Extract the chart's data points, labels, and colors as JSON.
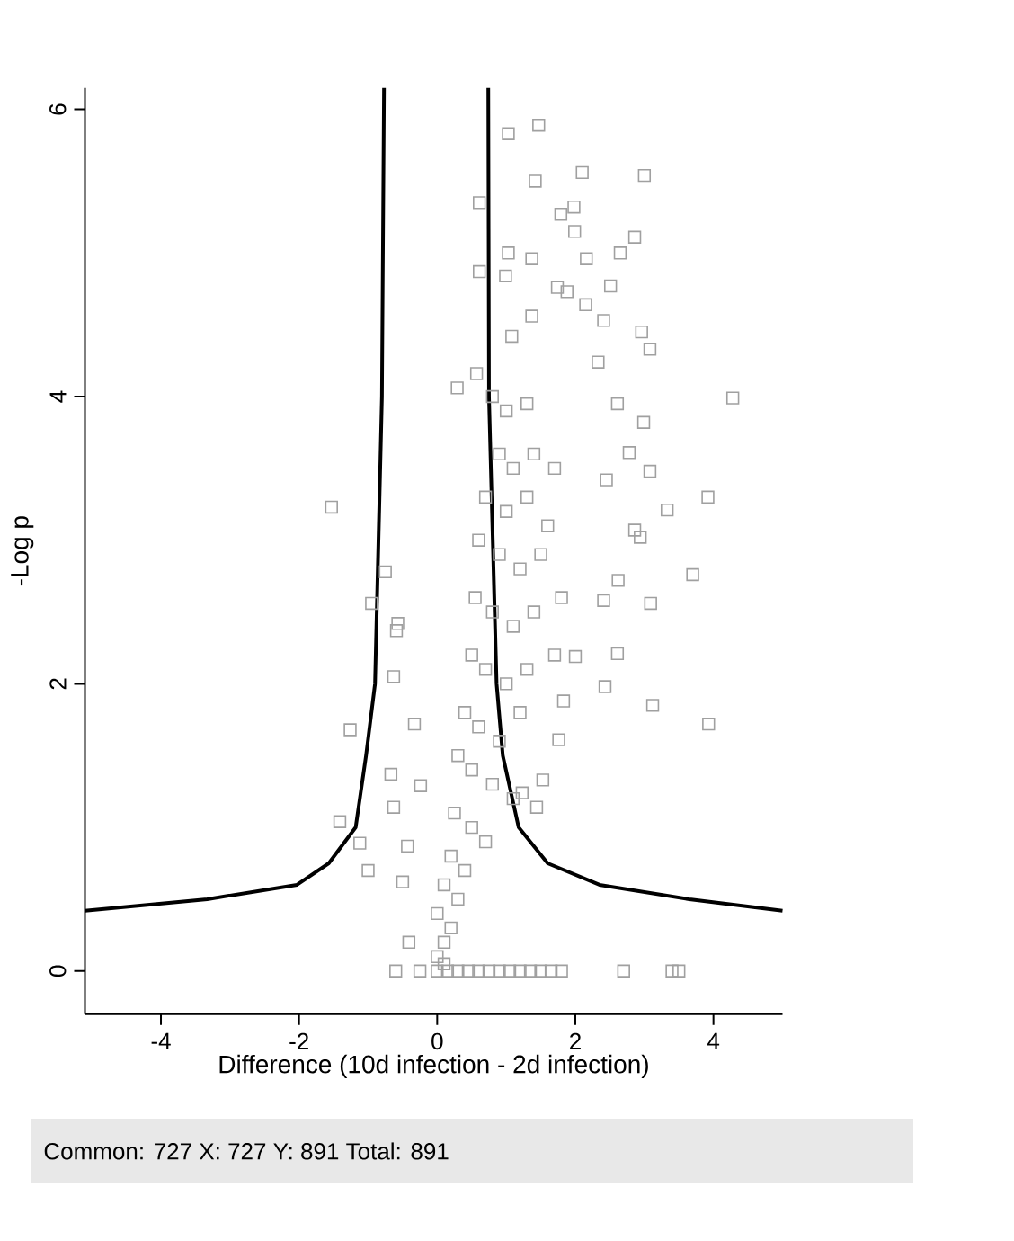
{
  "chart_data": {
    "type": "scatter",
    "xlabel": "Difference (10d infection - 2d infection)",
    "ylabel": "-Log p",
    "xlim": [
      -5.1,
      5
    ],
    "ylim": [
      -0.3,
      6.15
    ],
    "xticks": [
      -4,
      -2,
      0,
      2,
      4
    ],
    "yticks": [
      0,
      2,
      4,
      6
    ],
    "marker": "square",
    "annotations": [
      "Common: 727  X: 727  Y: 891  Total: 891"
    ],
    "series": [
      {
        "type": "scatter",
        "color": "#a0a0a0",
        "x": [
          1.47,
          1.03,
          1.42,
          2.1,
          3.0,
          0.61,
          1.98,
          1.79,
          1.99,
          2.86,
          2.65,
          1.03,
          1.37,
          2.16,
          0.61,
          0.99,
          2.51,
          1.74,
          1.88,
          2.15,
          2.41,
          2.96,
          3.08,
          1.37,
          1.08,
          2.33,
          0.57,
          0.29,
          2.61,
          4.28,
          2.99,
          2.78,
          3.08,
          2.45,
          -1.53,
          3.92,
          3.33,
          2.86,
          2.94,
          3.7,
          2.62,
          2.41,
          3.09,
          -0.95,
          -0.75,
          -0.57,
          0.8,
          1.0,
          1.3,
          0.9,
          1.1,
          1.4,
          1.7,
          0.7,
          1.0,
          1.3,
          1.6,
          0.6,
          0.9,
          1.2,
          1.5,
          0.55,
          0.8,
          1.1,
          1.4,
          1.8,
          0.5,
          0.7,
          1.0,
          1.3,
          1.7,
          0.4,
          0.6,
          0.9,
          1.2,
          0.3,
          0.5,
          0.8,
          1.1,
          0.25,
          0.5,
          0.7,
          0.2,
          0.4,
          0.1,
          0.3,
          0.0,
          0.2,
          0.1,
          0.0,
          0.1,
          -1.26,
          -0.59,
          -0.63,
          -0.33,
          -0.67,
          -0.24,
          -0.63,
          -1.41,
          -1.12,
          -1.0,
          -0.43,
          -0.5,
          -0.41,
          2.0,
          2.61,
          2.43,
          3.12,
          3.93,
          1.83,
          1.76,
          1.53,
          1.44,
          1.23,
          -0.6,
          -0.25,
          0.0,
          0.15,
          0.3,
          0.45,
          0.6,
          0.75,
          0.9,
          1.05,
          1.2,
          1.35,
          1.5,
          1.65,
          1.8,
          2.7,
          3.4,
          3.5
        ],
        "values": [
          5.89,
          5.83,
          5.5,
          5.56,
          5.54,
          5.35,
          5.32,
          5.27,
          5.15,
          5.11,
          5.0,
          5.0,
          4.96,
          4.96,
          4.87,
          4.84,
          4.77,
          4.76,
          4.73,
          4.64,
          4.53,
          4.45,
          4.33,
          4.56,
          4.42,
          4.24,
          4.16,
          4.06,
          3.95,
          3.99,
          3.82,
          3.61,
          3.48,
          3.42,
          3.23,
          3.3,
          3.21,
          3.07,
          3.02,
          2.76,
          2.72,
          2.58,
          2.56,
          2.56,
          2.78,
          2.42,
          4.0,
          3.9,
          3.95,
          3.6,
          3.5,
          3.6,
          3.5,
          3.3,
          3.2,
          3.3,
          3.1,
          3.0,
          2.9,
          2.8,
          2.9,
          2.6,
          2.5,
          2.4,
          2.5,
          2.6,
          2.2,
          2.1,
          2.0,
          2.1,
          2.2,
          1.8,
          1.7,
          1.6,
          1.8,
          1.5,
          1.4,
          1.3,
          1.2,
          1.1,
          1.0,
          0.9,
          0.8,
          0.7,
          0.6,
          0.5,
          0.4,
          0.3,
          0.2,
          0.1,
          0.05,
          1.68,
          2.37,
          2.05,
          1.72,
          1.37,
          1.29,
          1.14,
          1.04,
          0.89,
          0.7,
          0.87,
          0.62,
          0.2,
          2.19,
          2.21,
          1.98,
          1.85,
          1.72,
          1.88,
          1.61,
          1.33,
          1.14,
          1.24,
          0,
          0,
          0,
          0,
          0,
          0,
          0,
          0,
          0,
          0,
          0,
          0,
          0,
          0,
          0,
          0,
          0,
          0
        ]
      },
      {
        "type": "line",
        "marker": "none",
        "color": "#000000",
        "x": [
          -5.1,
          -3.33,
          -2.03,
          -1.57,
          -1.18,
          -1.03,
          -0.9,
          -0.8,
          -0.77
        ],
        "values": [
          0.42,
          0.5,
          0.6,
          0.75,
          1.0,
          1.5,
          2.0,
          4.0,
          6.15
        ]
      },
      {
        "type": "line",
        "marker": "none",
        "color": "#000000",
        "x": [
          0.74,
          0.75,
          0.86,
          0.95,
          1.18,
          1.6,
          2.35,
          3.65,
          5.0
        ],
        "values": [
          6.15,
          4.0,
          2.0,
          1.5,
          1.0,
          0.75,
          0.6,
          0.5,
          0.42
        ]
      }
    ]
  }
}
